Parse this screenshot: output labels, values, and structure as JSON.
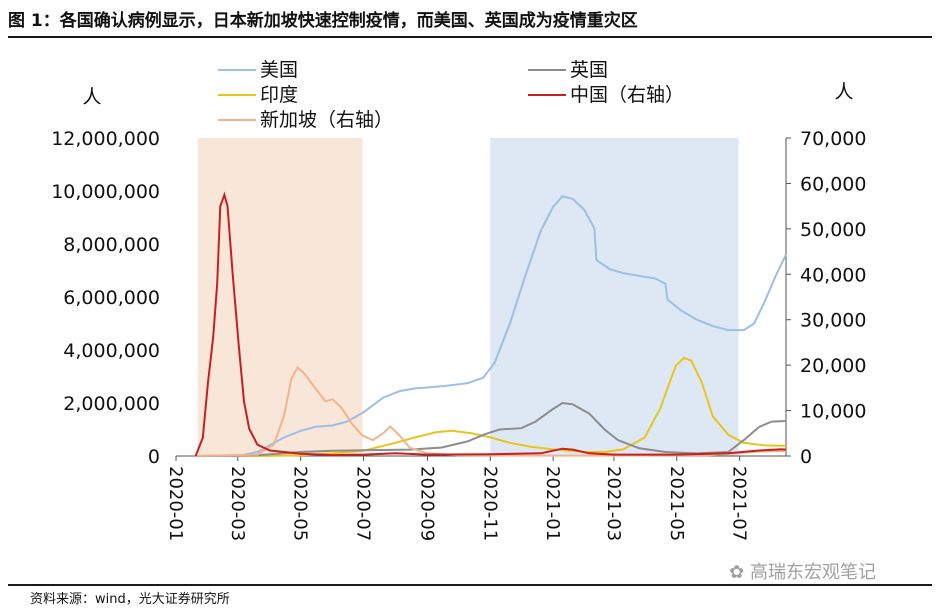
{
  "title": "图 1：各国确认病例显示，日本新加坡快速控制疫情，而美国、英国成为疫情重灾区",
  "source": "资料来源：wind，光大证券研究所",
  "watermark": "高瑞东宏观笔记",
  "chart_data": {
    "type": "line",
    "title": "图 1：各国确认病例显示，日本新加坡快速控制疫情，而美国、英国成为疫情重灾区",
    "ylabel_left": "人",
    "ylabel_right": "人",
    "ylim_left": [
      0,
      12000000
    ],
    "ylim_right": [
      0,
      70000
    ],
    "yticks_left": [
      "0",
      "2,000,000",
      "4,000,000",
      "6,000,000",
      "8,000,000",
      "10,000,000",
      "12,000,000"
    ],
    "yticks_right": [
      "0",
      "10,000",
      "20,000",
      "30,000",
      "40,000",
      "50,000",
      "60,000",
      "70,000"
    ],
    "xticks": [
      "2020-01",
      "2020-03",
      "2020-05",
      "2020-07",
      "2020-09",
      "2020-11",
      "2021-01",
      "2021-03",
      "2021-05",
      "2021-07"
    ],
    "x_range": [
      "2020-01",
      "2021-08"
    ],
    "legend_placement": "top",
    "shaded_regions": [
      {
        "start": "2020-01-22",
        "end": "2020-06-30",
        "color": "#f8e6d8"
      },
      {
        "start": "2020-11-01",
        "end": "2021-06-30",
        "color": "#dee8f5"
      }
    ],
    "series": [
      {
        "name": "美国",
        "axis": "left",
        "color": "#9ebfe4",
        "points": [
          [
            "2020-01-20",
            0
          ],
          [
            "2020-03-01",
            0
          ],
          [
            "2020-03-20",
            150000
          ],
          [
            "2020-04-15",
            700000
          ],
          [
            "2020-05-01",
            950000
          ],
          [
            "2020-05-15",
            1100000
          ],
          [
            "2020-06-01",
            1150000
          ],
          [
            "2020-06-15",
            1300000
          ],
          [
            "2020-07-01",
            1650000
          ],
          [
            "2020-07-20",
            2200000
          ],
          [
            "2020-08-05",
            2450000
          ],
          [
            "2020-08-20",
            2550000
          ],
          [
            "2020-09-05",
            2600000
          ],
          [
            "2020-09-20",
            2650000
          ],
          [
            "2020-10-10",
            2750000
          ],
          [
            "2020-10-25",
            2950000
          ],
          [
            "2020-11-05",
            3500000
          ],
          [
            "2020-11-20",
            5000000
          ],
          [
            "2020-12-05",
            6800000
          ],
          [
            "2020-12-20",
            8500000
          ],
          [
            "2021-01-01",
            9400000
          ],
          [
            "2021-01-10",
            9800000
          ],
          [
            "2021-01-20",
            9700000
          ],
          [
            "2021-01-31",
            9300000
          ],
          [
            "2021-02-10",
            8600000
          ],
          [
            "2021-02-12",
            7400000
          ],
          [
            "2021-02-25",
            7050000
          ],
          [
            "2021-03-10",
            6900000
          ],
          [
            "2021-03-25",
            6800000
          ],
          [
            "2021-04-10",
            6700000
          ],
          [
            "2021-04-20",
            6500000
          ],
          [
            "2021-04-22",
            5900000
          ],
          [
            "2021-05-05",
            5500000
          ],
          [
            "2021-05-20",
            5150000
          ],
          [
            "2021-06-05",
            4900000
          ],
          [
            "2021-06-20",
            4750000
          ],
          [
            "2021-07-05",
            4750000
          ],
          [
            "2021-07-15",
            5000000
          ],
          [
            "2021-07-25",
            5800000
          ],
          [
            "2021-08-05",
            6800000
          ],
          [
            "2021-08-15",
            7600000
          ]
        ]
      },
      {
        "name": "英国",
        "axis": "left",
        "color": "#8c8c8c",
        "points": [
          [
            "2020-01-20",
            0
          ],
          [
            "2020-03-20",
            30000
          ],
          [
            "2020-05-01",
            150000
          ],
          [
            "2020-06-01",
            200000
          ],
          [
            "2020-07-01",
            220000
          ],
          [
            "2020-08-15",
            240000
          ],
          [
            "2020-09-15",
            320000
          ],
          [
            "2020-10-10",
            550000
          ],
          [
            "2020-10-25",
            800000
          ],
          [
            "2020-11-10",
            1000000
          ],
          [
            "2020-12-01",
            1050000
          ],
          [
            "2020-12-15",
            1300000
          ],
          [
            "2020-12-31",
            1750000
          ],
          [
            "2021-01-10",
            2000000
          ],
          [
            "2021-01-20",
            1950000
          ],
          [
            "2021-02-05",
            1600000
          ],
          [
            "2021-02-20",
            1000000
          ],
          [
            "2021-03-05",
            600000
          ],
          [
            "2021-03-25",
            300000
          ],
          [
            "2021-04-20",
            150000
          ],
          [
            "2021-05-20",
            100000
          ],
          [
            "2021-06-20",
            150000
          ],
          [
            "2021-07-05",
            600000
          ],
          [
            "2021-07-20",
            1100000
          ],
          [
            "2021-08-01",
            1300000
          ],
          [
            "2021-08-15",
            1320000
          ]
        ]
      },
      {
        "name": "印度",
        "axis": "left",
        "color": "#e8c51c",
        "points": [
          [
            "2020-01-20",
            0
          ],
          [
            "2020-04-01",
            5000
          ],
          [
            "2020-05-01",
            30000
          ],
          [
            "2020-06-01",
            100000
          ],
          [
            "2020-07-01",
            200000
          ],
          [
            "2020-08-01",
            500000
          ],
          [
            "2020-08-20",
            700000
          ],
          [
            "2020-09-10",
            900000
          ],
          [
            "2020-09-25",
            950000
          ],
          [
            "2020-10-15",
            850000
          ],
          [
            "2020-11-01",
            700000
          ],
          [
            "2020-11-20",
            500000
          ],
          [
            "2020-12-10",
            350000
          ],
          [
            "2021-01-01",
            250000
          ],
          [
            "2021-02-01",
            150000
          ],
          [
            "2021-02-20",
            150000
          ],
          [
            "2021-03-10",
            250000
          ],
          [
            "2021-03-31",
            700000
          ],
          [
            "2021-04-15",
            1800000
          ],
          [
            "2021-04-30",
            3400000
          ],
          [
            "2021-05-08",
            3700000
          ],
          [
            "2021-05-15",
            3600000
          ],
          [
            "2021-05-25",
            2800000
          ],
          [
            "2021-06-05",
            1500000
          ],
          [
            "2021-06-20",
            800000
          ],
          [
            "2021-07-05",
            500000
          ],
          [
            "2021-07-25",
            400000
          ],
          [
            "2021-08-15",
            380000
          ]
        ]
      },
      {
        "name": "中国（右轴）",
        "axis": "right",
        "color": "#c8201e",
        "points": [
          [
            "2020-01-20",
            0
          ],
          [
            "2020-01-27",
            4000
          ],
          [
            "2020-02-01",
            16000
          ],
          [
            "2020-02-06",
            26000
          ],
          [
            "2020-02-10",
            38000
          ],
          [
            "2020-02-13",
            55000
          ],
          [
            "2020-02-17",
            57500
          ],
          [
            "2020-02-20",
            55000
          ],
          [
            "2020-02-25",
            40000
          ],
          [
            "2020-03-02",
            24000
          ],
          [
            "2020-03-07",
            12000
          ],
          [
            "2020-03-12",
            6000
          ],
          [
            "2020-03-20",
            2500
          ],
          [
            "2020-04-01",
            1200
          ],
          [
            "2020-05-01",
            500
          ],
          [
            "2020-06-01",
            200
          ],
          [
            "2020-07-01",
            300
          ],
          [
            "2020-08-01",
            600
          ],
          [
            "2020-09-01",
            300
          ],
          [
            "2020-11-01",
            400
          ],
          [
            "2020-12-20",
            600
          ],
          [
            "2021-01-10",
            1600
          ],
          [
            "2021-01-20",
            1400
          ],
          [
            "2021-02-05",
            600
          ],
          [
            "2021-03-01",
            300
          ],
          [
            "2021-05-01",
            300
          ],
          [
            "2021-06-20",
            600
          ],
          [
            "2021-07-20",
            1200
          ],
          [
            "2021-08-10",
            1500
          ],
          [
            "2021-08-15",
            1400
          ]
        ]
      },
      {
        "name": "新加坡（右轴）",
        "axis": "right",
        "color": "#f2b48c",
        "points": [
          [
            "2020-01-20",
            0
          ],
          [
            "2020-03-20",
            300
          ],
          [
            "2020-04-05",
            2500
          ],
          [
            "2020-04-15",
            9000
          ],
          [
            "2020-04-22",
            17000
          ],
          [
            "2020-04-28",
            19500
          ],
          [
            "2020-05-05",
            18000
          ],
          [
            "2020-05-15",
            15000
          ],
          [
            "2020-05-25",
            12000
          ],
          [
            "2020-06-01",
            12500
          ],
          [
            "2020-06-10",
            10500
          ],
          [
            "2020-06-20",
            7000
          ],
          [
            "2020-06-30",
            4500
          ],
          [
            "2020-07-10",
            3500
          ],
          [
            "2020-07-20",
            5000
          ],
          [
            "2020-07-27",
            6500
          ],
          [
            "2020-08-05",
            4500
          ],
          [
            "2020-08-15",
            1800
          ],
          [
            "2020-09-01",
            600
          ],
          [
            "2020-10-01",
            150
          ],
          [
            "2020-12-01",
            80
          ],
          [
            "2021-03-01",
            80
          ],
          [
            "2021-06-01",
            150
          ],
          [
            "2021-07-20",
            1000
          ],
          [
            "2021-08-15",
            1100
          ]
        ]
      }
    ]
  }
}
